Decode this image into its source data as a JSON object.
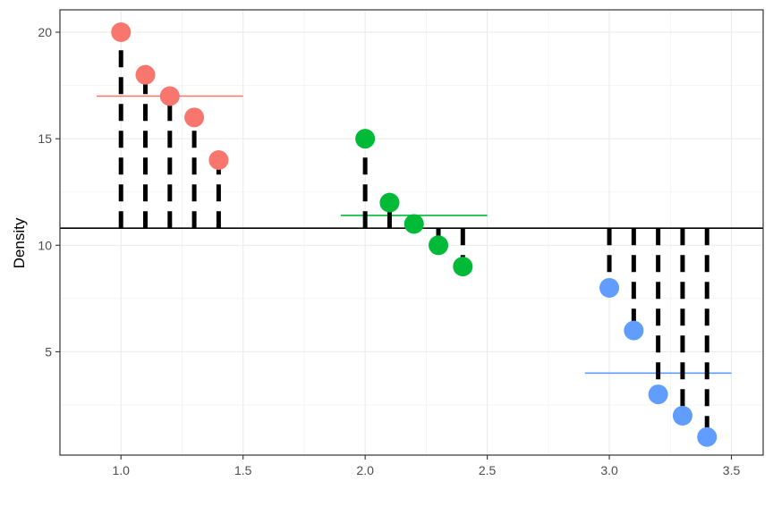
{
  "chart_data": {
    "type": "scatter",
    "title": "",
    "xlabel": "",
    "ylabel": "Density",
    "xlim": [
      0.75,
      3.63
    ],
    "ylim": [
      0.15,
      21.05
    ],
    "x_ticks": [
      1.0,
      1.5,
      2.0,
      2.5,
      3.0,
      3.5
    ],
    "x_tick_labels": [
      "1.0",
      "1.5",
      "2.0",
      "2.5",
      "3.0",
      "3.5"
    ],
    "y_ticks": [
      5,
      10,
      15,
      20
    ],
    "y_tick_labels": [
      "5",
      "10",
      "15",
      "20"
    ],
    "grid": true,
    "legend": "none",
    "grand_mean": 10.8,
    "grand_mean_color": "#000000",
    "deviation_color": "#000000",
    "groups": [
      {
        "color": "#F8766D",
        "mean": 17,
        "mean_x_range": [
          0.9,
          1.5
        ],
        "points": [
          {
            "x": 1.0,
            "y": 20
          },
          {
            "x": 1.1,
            "y": 18
          },
          {
            "x": 1.2,
            "y": 17
          },
          {
            "x": 1.3,
            "y": 16
          },
          {
            "x": 1.4,
            "y": 14
          }
        ]
      },
      {
        "color": "#00BA38",
        "mean": 11.4,
        "mean_x_range": [
          1.9,
          2.5
        ],
        "points": [
          {
            "x": 2.0,
            "y": 15
          },
          {
            "x": 2.1,
            "y": 12
          },
          {
            "x": 2.2,
            "y": 11
          },
          {
            "x": 2.3,
            "y": 10
          },
          {
            "x": 2.4,
            "y": 9
          }
        ]
      },
      {
        "color": "#619CFF",
        "mean": 4,
        "mean_x_range": [
          2.9,
          3.5
        ],
        "points": [
          {
            "x": 3.0,
            "y": 8
          },
          {
            "x": 3.1,
            "y": 6
          },
          {
            "x": 3.2,
            "y": 3
          },
          {
            "x": 3.3,
            "y": 2
          },
          {
            "x": 3.4,
            "y": 1
          }
        ]
      }
    ]
  }
}
